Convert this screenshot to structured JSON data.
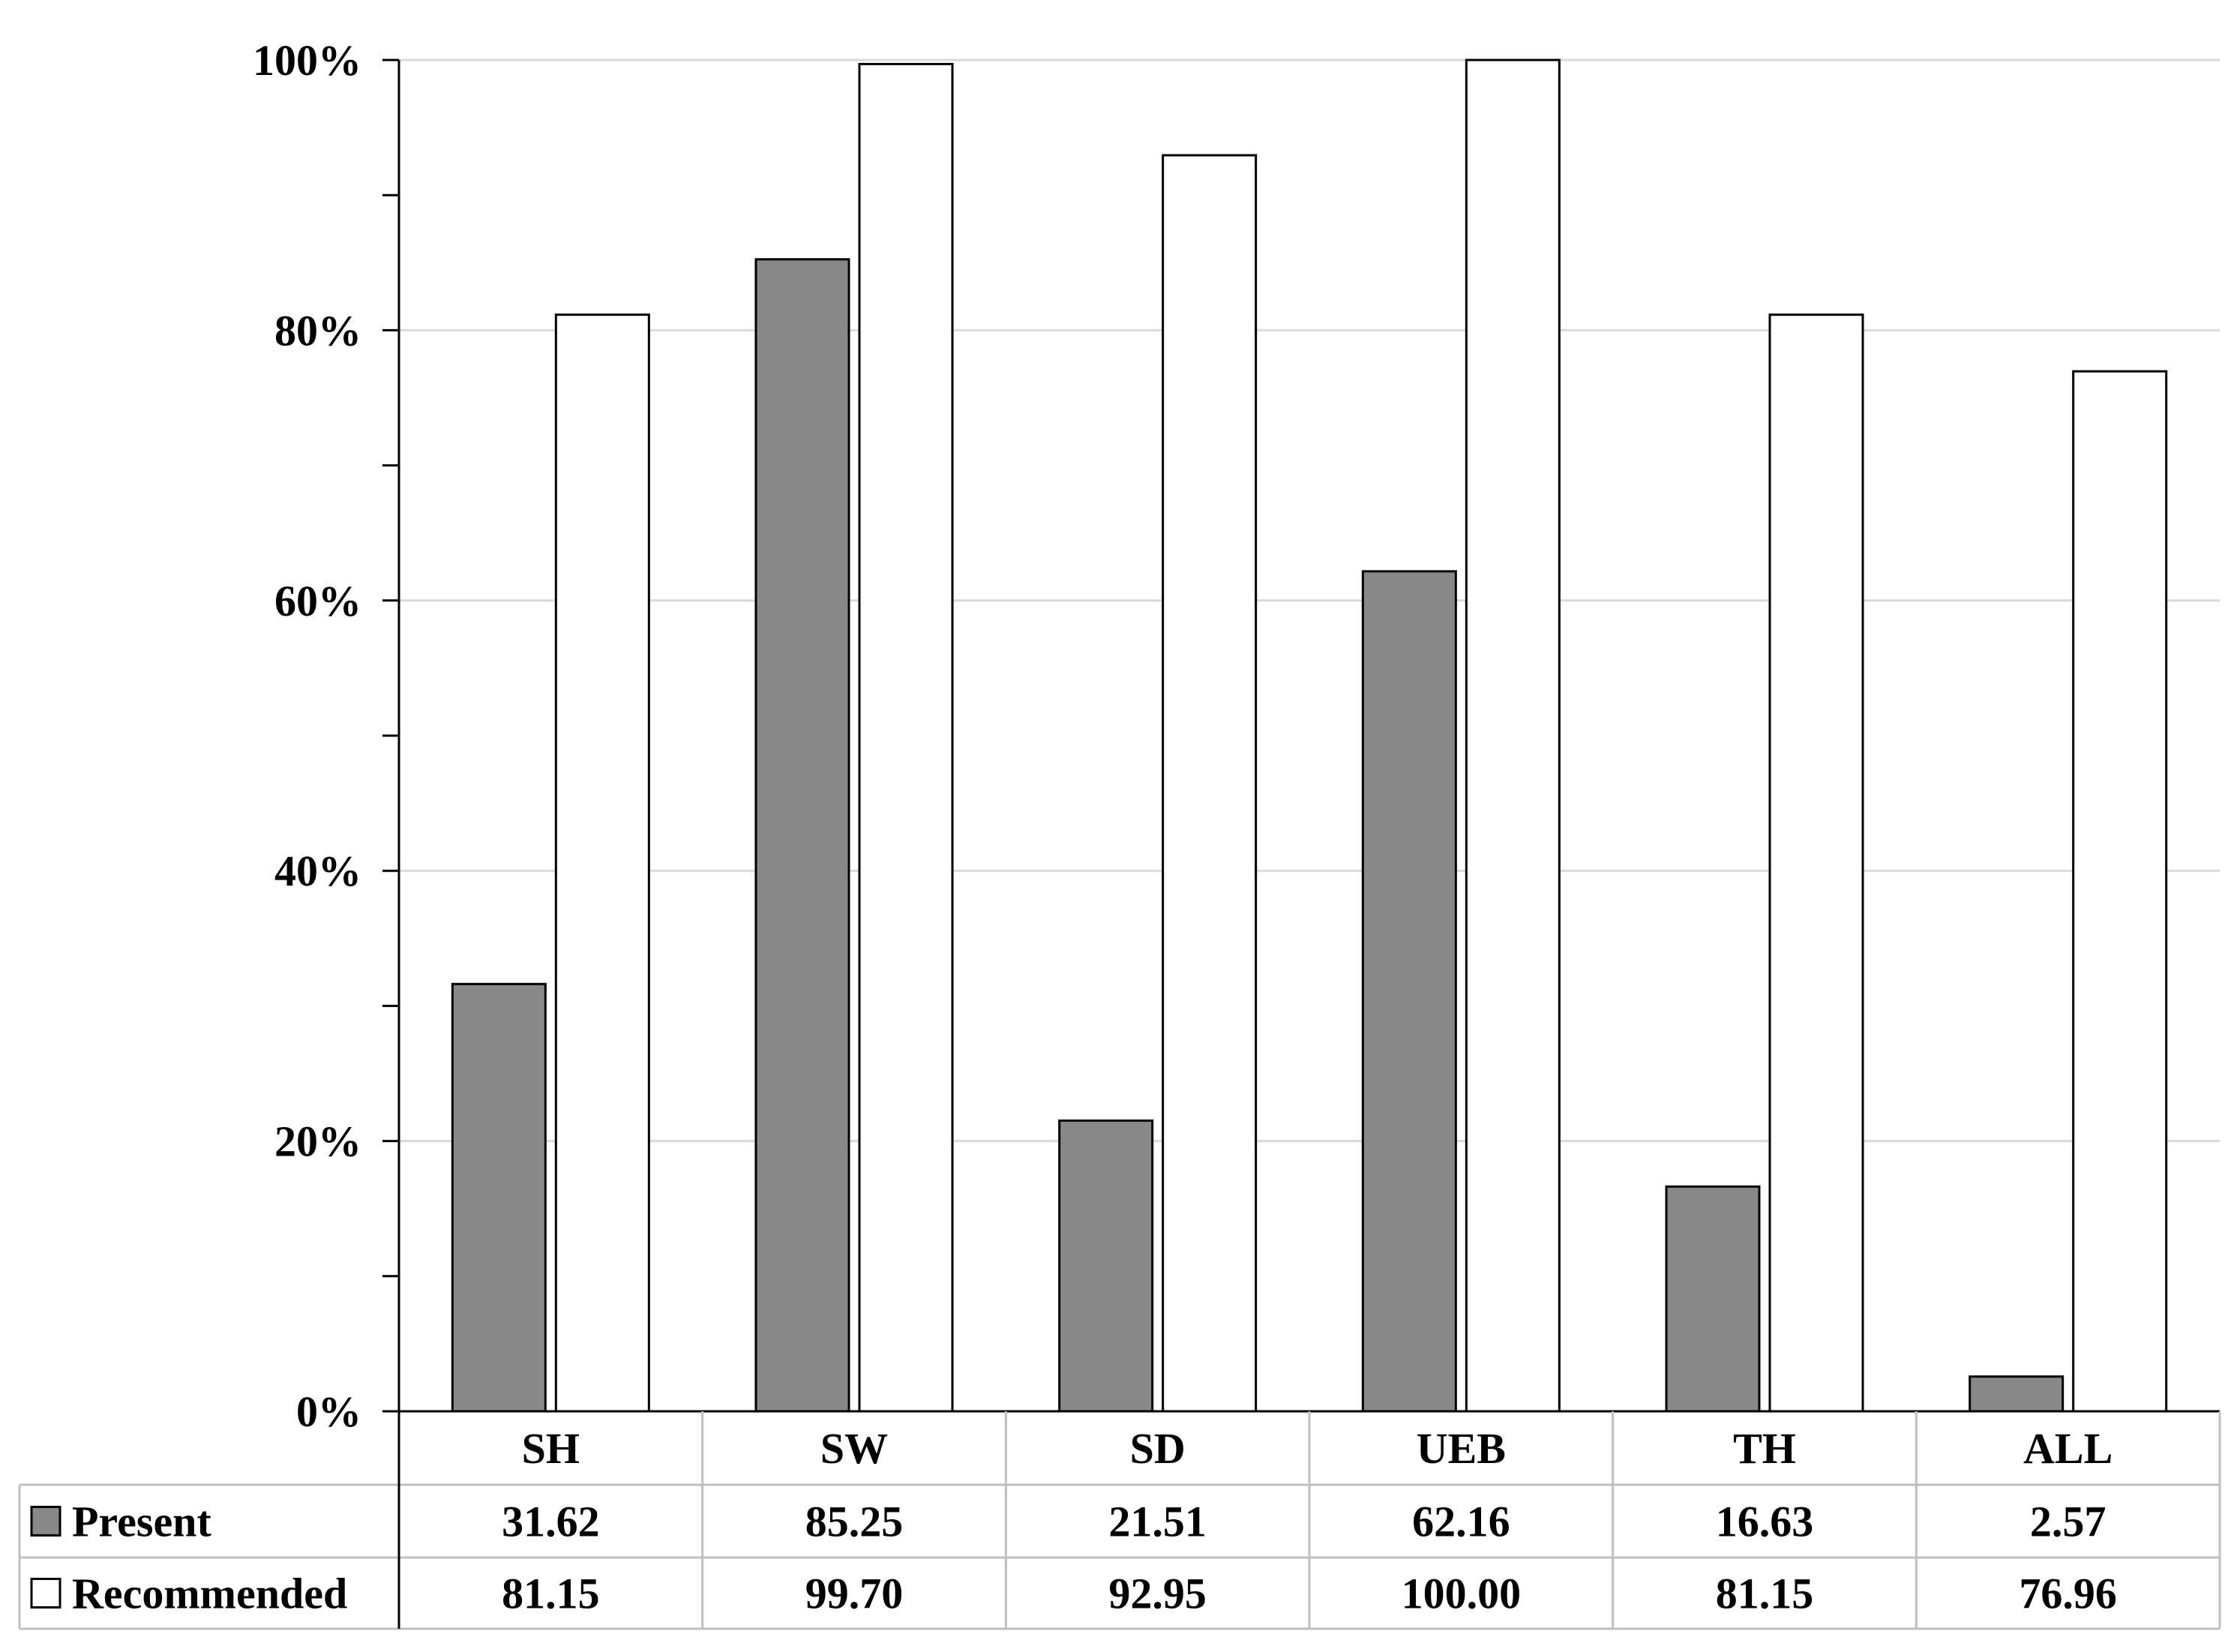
{
  "chart_data": {
    "type": "bar",
    "categories": [
      "SH",
      "SW",
      "SD",
      "UEB",
      "TH",
      "ALL"
    ],
    "series": [
      {
        "name": "Present",
        "values": [
          31.62,
          85.25,
          21.51,
          62.16,
          16.63,
          2.57
        ],
        "labels": [
          "31.62",
          "85.25",
          "21.51",
          "62.16",
          "16.63",
          "2.57"
        ],
        "color": "#888888"
      },
      {
        "name": "Recommended",
        "values": [
          81.15,
          99.7,
          92.95,
          100.0,
          81.15,
          76.96
        ],
        "labels": [
          "81.15",
          "99.70",
          "92.95",
          "100.00",
          "81.15",
          "76.96"
        ],
        "color": "#ffffff"
      }
    ],
    "ylim": [
      0,
      100
    ],
    "yticks": [
      0,
      20,
      40,
      60,
      80,
      100
    ],
    "ytick_labels": [
      "0%",
      "20%",
      "40%",
      "60%",
      "80%",
      "100%"
    ],
    "ytick_minor_step": 10,
    "grid": true,
    "legend": "data-table-left",
    "title": "",
    "xlabel": "",
    "ylabel": ""
  }
}
